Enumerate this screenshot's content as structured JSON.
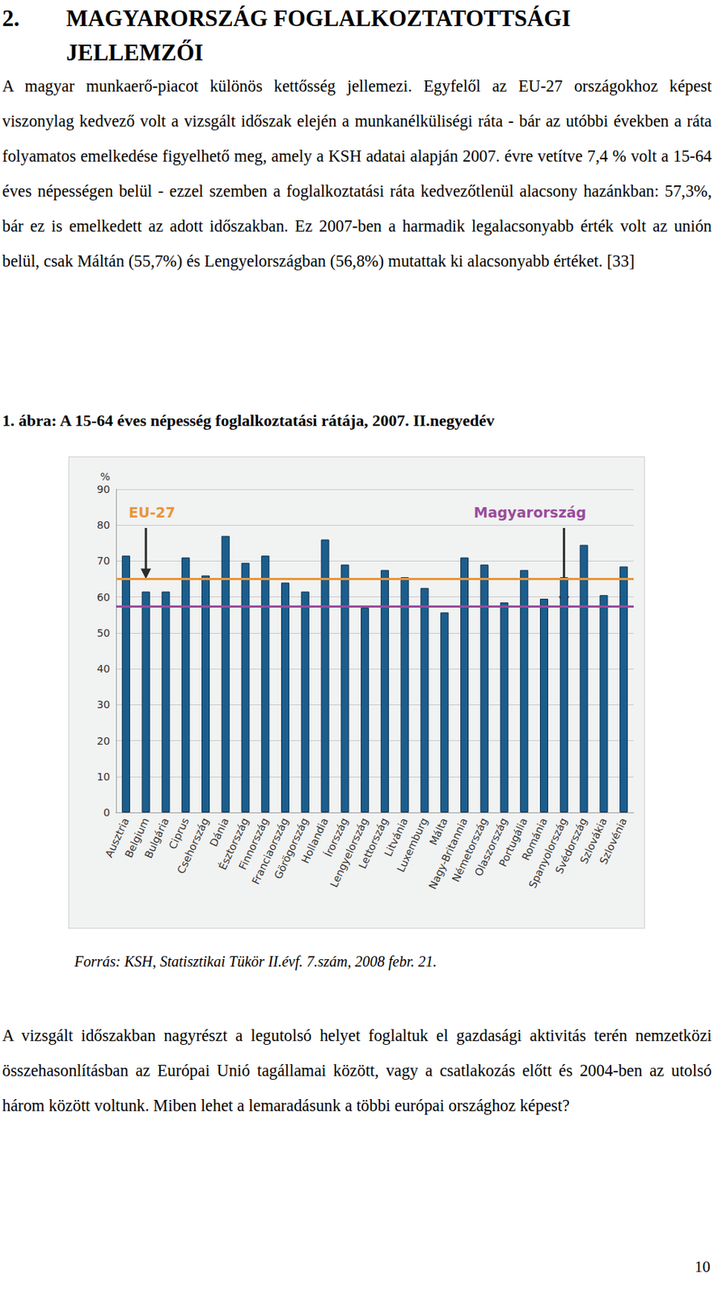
{
  "heading": {
    "number": "2.",
    "title": "MAGYARORSZÁG FOGLALKOZTATOTTSÁGI JELLEMZŐI"
  },
  "paragraphs": [
    "A magyar munkaerő-piacot különös kettősség jellemezi. Egyfelől az EU-27 országokhoz képest viszonylag kedvező volt a vizsgált időszak elején a munkanélküliségi ráta - bár az utóbbi években a ráta folyamatos emelkedése figyelhető meg, amely a KSH adatai alapján 2007. évre vetítve 7,4 % volt a 15-64 éves népességen belül - ezzel szemben a foglalkoztatási ráta kedvezőtlenül alacsony hazánkban: 57,3%, bár ez is emelkedett az adott időszakban. Ez 2007-ben a harmadik legalacsonyabb érték volt az unión belül, csak Máltán (55,7%) és Lengyelországban (56,8%) mutattak ki alacsonyabb értéket. [33]"
  ],
  "figure": {
    "caption": "1. ábra: A 15-64 éves népesség foglalkoztatási rátája, 2007. II.negyedév",
    "source": "Forrás: KSH, Statisztikai Tükör II.évf. 7.szám, 2008 febr. 21."
  },
  "chart_data": {
    "type": "bar",
    "categories": [
      "Ausztria",
      "Belgium",
      "Bulgária",
      "Ciprus",
      "Csehország",
      "Dánia",
      "Észtország",
      "Finnország",
      "Franciaország",
      "Görögország",
      "Hollandia",
      "Írország",
      "Lengyelország",
      "Lettország",
      "Litvánia",
      "Luxemburg",
      "Málta",
      "Nagy-Britannia",
      "Németország",
      "Olaszország",
      "Portugália",
      "Románia",
      "Spanyolország",
      "Svédország",
      "Szlovákia",
      "Szlovénia"
    ],
    "values": [
      71.5,
      61.5,
      61.5,
      71,
      66,
      77,
      69.5,
      71.5,
      64,
      61.5,
      76,
      69,
      57,
      67.5,
      65.5,
      62.5,
      55.7,
      71,
      69,
      58.5,
      67.5,
      59.5,
      65.5,
      74.5,
      60.5,
      68.5
    ],
    "color": "#1b5e8e",
    "ylabel": "%",
    "ylim": [
      0,
      90
    ],
    "yticks": [
      0,
      10,
      20,
      30,
      40,
      50,
      60,
      70,
      80,
      90
    ],
    "grid": true,
    "reference_lines": [
      {
        "label": "EU-27",
        "value": 65,
        "color": "#e8963a"
      },
      {
        "label": "Magyarország",
        "value": 57.3,
        "color": "#9a4c9c"
      }
    ]
  },
  "closing_paragraph": "A vizsgált időszakban nagyrészt a legutolsó helyet foglaltuk el gazdasági aktivitás terén nemzetközi összehasonlításban az Európai Unió tagállamai között, vagy a csatlakozás előtt és 2004-ben az utolsó három között voltunk. Miben lehet a lemaradásunk a többi európai országhoz képest?",
  "page_number": 10
}
